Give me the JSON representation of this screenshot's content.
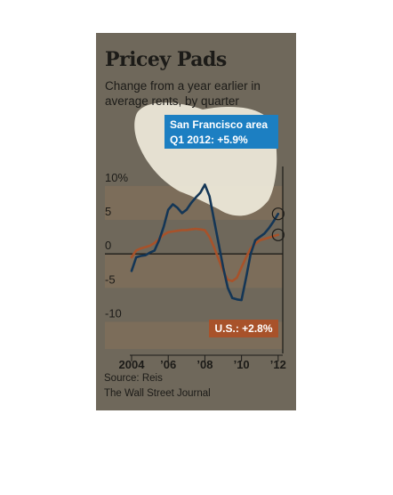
{
  "title": "Pricey Pads",
  "subtitle": "Change from a year earlier in average rents, by quarter",
  "source": "Source: Reis",
  "publisher": "The Wall Street Journal",
  "colors": {
    "background": "#6f685b",
    "band": "#7c6d5a",
    "sf_line": "#143656",
    "us_line": "#a8522a",
    "sf_box": "#1c7fc2",
    "us_box": "#a8522a",
    "highlight": "#eeeada"
  },
  "callouts": {
    "sf_line1": "San Francisco area",
    "sf_line2": "Q1 2012:  +5.9%",
    "us": "U.S.: +2.8%"
  },
  "chart_data": {
    "type": "line",
    "ylim": [
      -14,
      13
    ],
    "yticks": [
      {
        "value": 10,
        "label": "10%"
      },
      {
        "value": 5,
        "label": "5"
      },
      {
        "value": 0,
        "label": "0"
      },
      {
        "value": -5,
        "label": "-5"
      },
      {
        "value": -10,
        "label": "-10"
      }
    ],
    "xlim": [
      2004,
      2012.25
    ],
    "xticks": [
      {
        "value": 2004,
        "label": "2004"
      },
      {
        "value": 2006,
        "label": "’06"
      },
      {
        "value": 2008,
        "label": "’08"
      },
      {
        "value": 2010,
        "label": "’10"
      },
      {
        "value": 2012,
        "label": "’12"
      }
    ],
    "series": [
      {
        "name": "San Francisco area",
        "x": [
          2004.0,
          2004.25,
          2004.5,
          2004.75,
          2005.0,
          2005.25,
          2005.5,
          2005.75,
          2006.0,
          2006.25,
          2006.5,
          2006.75,
          2007.0,
          2007.25,
          2007.5,
          2007.75,
          2008.0,
          2008.25,
          2008.5,
          2008.75,
          2009.0,
          2009.25,
          2009.5,
          2009.75,
          2010.0,
          2010.25,
          2010.5,
          2010.75,
          2011.0,
          2011.25,
          2011.5,
          2011.75,
          2012.0
        ],
        "values": [
          -2.5,
          -0.5,
          -0.3,
          -0.2,
          0.2,
          0.5,
          2.0,
          4.0,
          6.5,
          7.3,
          6.8,
          6.0,
          6.5,
          7.5,
          8.3,
          9.0,
          10.2,
          8.5,
          5.0,
          1.5,
          -2.0,
          -5.0,
          -6.5,
          -6.7,
          -6.8,
          -3.5,
          0.0,
          2.0,
          2.5,
          3.0,
          3.8,
          4.8,
          5.9
        ]
      },
      {
        "name": "U.S.",
        "x": [
          2004.0,
          2004.25,
          2004.5,
          2004.75,
          2005.0,
          2005.25,
          2005.5,
          2005.75,
          2006.0,
          2006.25,
          2006.5,
          2006.75,
          2007.0,
          2007.25,
          2007.5,
          2007.75,
          2008.0,
          2008.25,
          2008.5,
          2008.75,
          2009.0,
          2009.25,
          2009.5,
          2009.75,
          2010.0,
          2010.25,
          2010.5,
          2010.75,
          2011.0,
          2011.25,
          2011.5,
          2011.75,
          2012.0
        ],
        "values": [
          -0.5,
          0.5,
          0.8,
          1.0,
          1.2,
          1.6,
          2.2,
          2.8,
          3.2,
          3.3,
          3.4,
          3.5,
          3.5,
          3.6,
          3.7,
          3.6,
          3.5,
          2.5,
          1.0,
          -0.8,
          -2.5,
          -3.8,
          -4.0,
          -3.5,
          -2.0,
          -0.5,
          0.8,
          1.5,
          2.0,
          2.2,
          2.4,
          2.6,
          2.8
        ]
      }
    ]
  }
}
